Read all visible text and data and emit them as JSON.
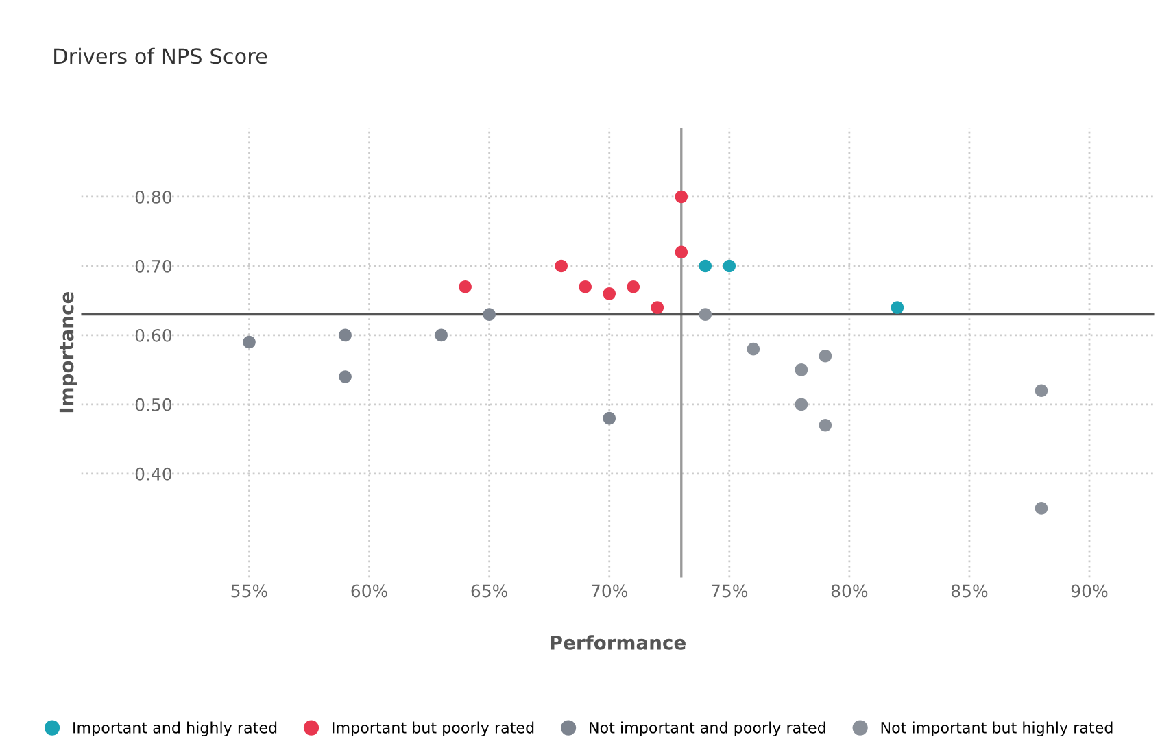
{
  "chart_data": {
    "type": "scatter",
    "title": "Drivers of NPS Score",
    "xlabel": "Performance",
    "ylabel": "Importance",
    "xlim": [
      48,
      92.7
    ],
    "ylim": [
      0.25,
      0.9
    ],
    "xticks": [
      {
        "value": 55,
        "label": "55%"
      },
      {
        "value": 60,
        "label": "60%"
      },
      {
        "value": 65,
        "label": "65%"
      },
      {
        "value": 70,
        "label": "70%"
      },
      {
        "value": 75,
        "label": "75%"
      },
      {
        "value": 80,
        "label": "80%"
      },
      {
        "value": 85,
        "label": "85%"
      },
      {
        "value": 90,
        "label": "90%"
      }
    ],
    "yticks": [
      {
        "value": 0.4,
        "label": "0.40"
      },
      {
        "value": 0.5,
        "label": "0.50"
      },
      {
        "value": 0.6,
        "label": "0.60"
      },
      {
        "value": 0.7,
        "label": "0.70"
      },
      {
        "value": 0.8,
        "label": "0.80"
      }
    ],
    "grid": true,
    "legend": "bottom",
    "marker": "circle",
    "ref_lines": [
      {
        "axis": "x",
        "value": 73,
        "color": "#999999"
      },
      {
        "axis": "y",
        "value": 0.63,
        "color": "#555555"
      }
    ],
    "series": [
      {
        "name": "Important and highly rated",
        "color": "#1aa3b5",
        "x": [
          74,
          75,
          82
        ],
        "values": [
          0.7,
          0.7,
          0.64
        ]
      },
      {
        "name": "Important but poorly rated",
        "color": "#e8374f",
        "x": [
          64,
          68,
          69,
          70,
          71,
          72,
          73,
          73
        ],
        "values": [
          0.67,
          0.7,
          0.67,
          0.66,
          0.67,
          0.64,
          0.72,
          0.8
        ]
      },
      {
        "name": "Not important and poorly rated",
        "color": "#7d848f",
        "x": [
          55,
          59,
          59,
          63,
          65,
          70
        ],
        "values": [
          0.59,
          0.6,
          0.54,
          0.6,
          0.63,
          0.48
        ]
      },
      {
        "name": "Not important but highly rated",
        "color": "#8a9099",
        "x": [
          74,
          76,
          78,
          79,
          78,
          79,
          88,
          88
        ],
        "values": [
          0.63,
          0.58,
          0.55,
          0.57,
          0.5,
          0.47,
          0.52,
          0.35
        ]
      }
    ]
  }
}
